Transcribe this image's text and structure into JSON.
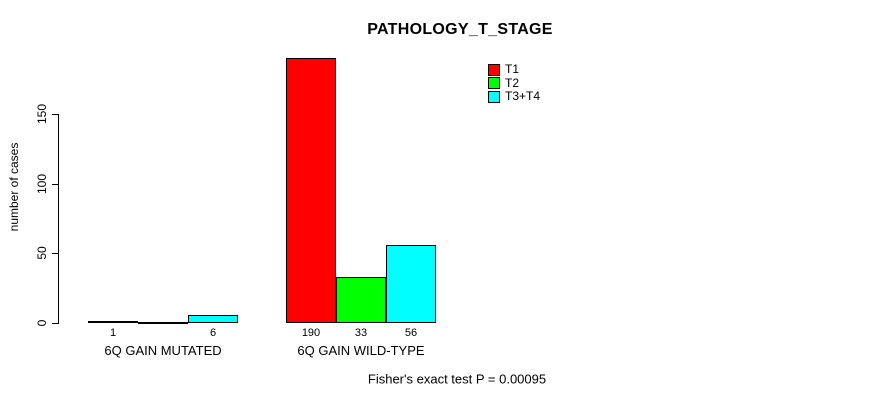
{
  "chart_data": {
    "type": "bar",
    "title": "PATHOLOGY_T_STAGE",
    "ylabel": "number of cases",
    "xlabel": "",
    "ylim": [
      0,
      150
    ],
    "yticks": [
      0,
      50,
      100,
      150
    ],
    "grid": false,
    "legend_position": "top-right",
    "groups": [
      "6Q GAIN MUTATED",
      "6Q GAIN WILD-TYPE"
    ],
    "series": [
      {
        "name": "T1",
        "color": "#ff0000",
        "values": [
          1,
          190
        ]
      },
      {
        "name": "T2",
        "color": "#00ff00",
        "values": [
          0,
          33
        ]
      },
      {
        "name": "T3+T4",
        "color": "#00ffff",
        "values": [
          6,
          56
        ]
      }
    ],
    "bar_labels": [
      [
        "1",
        "",
        "6"
      ],
      [
        "190",
        "33",
        "56"
      ]
    ],
    "annotation": "Fisher's exact test P = 0.00095",
    "colors": {
      "axis": "#000000",
      "background": "#ffffff",
      "text": "#000000"
    }
  }
}
